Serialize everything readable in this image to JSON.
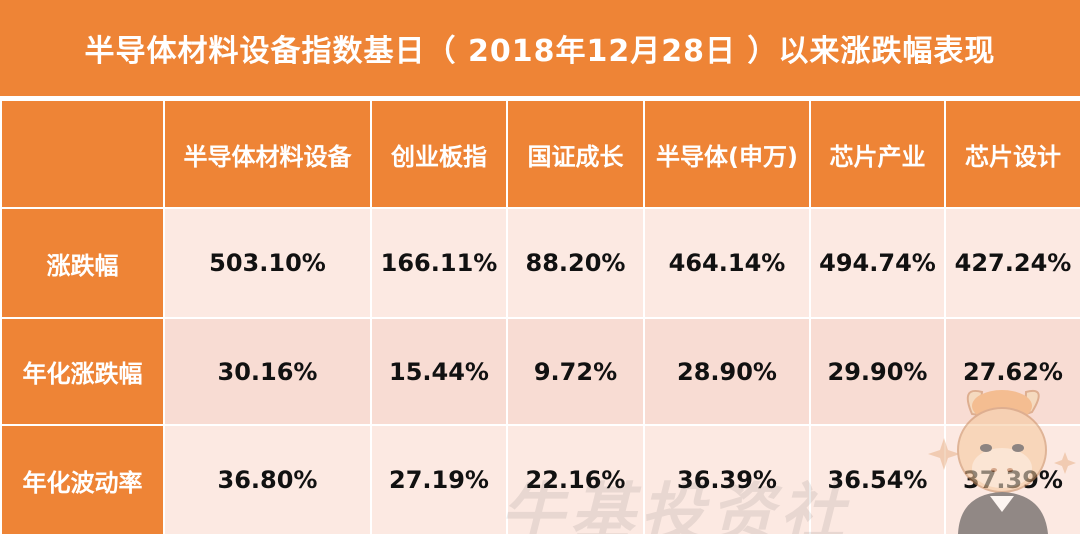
{
  "title": "半导体材料设备指数基日（ 2018年12月28日 ）以来涨跌幅表现",
  "table": {
    "corner": "",
    "columns": [
      "半导体材料设备",
      "创业板指",
      "国证成长",
      "半导体(申万)",
      "芯片产业",
      "芯片设计"
    ],
    "rows": [
      {
        "label": "涨跌幅",
        "values": [
          "503.10%",
          "166.11%",
          "88.20%",
          "464.14%",
          "494.74%",
          "427.24%"
        ]
      },
      {
        "label": "年化涨跌幅",
        "values": [
          "30.16%",
          "15.44%",
          "9.72%",
          "28.90%",
          "29.90%",
          "27.62%"
        ]
      },
      {
        "label": "年化波动率",
        "values": [
          "36.80%",
          "27.19%",
          "22.16%",
          "36.39%",
          "36.54%",
          "37.39%"
        ]
      }
    ]
  },
  "watermark": "牛基投资社",
  "colors": {
    "header_orange": "#EE8436",
    "row_light": "#FCE9E2",
    "row_mid": "#F8DCD3"
  },
  "decorations": [
    "mascot-icon"
  ]
}
